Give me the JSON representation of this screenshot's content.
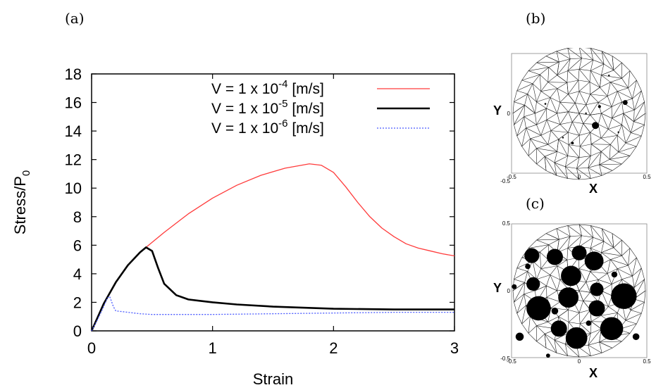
{
  "panels": {
    "a": "(a)",
    "b": "(b)",
    "c": "(c)"
  },
  "chart_data": [
    {
      "type": "line",
      "xlabel": "Strain",
      "ylabel": "Stress/P",
      "ylabel_sub": "0",
      "xlim": [
        0,
        3
      ],
      "ylim": [
        0,
        18
      ],
      "xticks": [
        0,
        1,
        2,
        3
      ],
      "yticks": [
        0,
        2,
        4,
        6,
        8,
        10,
        12,
        14,
        16,
        18
      ],
      "legend_position": "top-right",
      "series": [
        {
          "name": "V = 1 x 10^-4 [m/s]",
          "label_main": "V = 1 x 10",
          "label_exp": "-4",
          "label_unit": " [m/s]",
          "color": "#ff3b3b",
          "style": "solid",
          "x": [
            0,
            0.1,
            0.2,
            0.3,
            0.4,
            0.5,
            0.6,
            0.8,
            1.0,
            1.2,
            1.4,
            1.6,
            1.8,
            1.9,
            2.0,
            2.1,
            2.2,
            2.3,
            2.4,
            2.5,
            2.6,
            2.7,
            2.8,
            2.9,
            3.0
          ],
          "y": [
            0,
            1.9,
            3.4,
            4.6,
            5.5,
            6.2,
            6.9,
            8.2,
            9.3,
            10.2,
            10.9,
            11.4,
            11.7,
            11.6,
            11.1,
            10.1,
            9.0,
            8.0,
            7.2,
            6.6,
            6.1,
            5.8,
            5.6,
            5.4,
            5.25
          ]
        },
        {
          "name": "V = 1 x 10^-5 [m/s]",
          "label_main": "V = 1 x 10",
          "label_exp": "-5",
          "label_unit": " [m/s]",
          "color": "#000000",
          "style": "solid-thick",
          "x": [
            0,
            0.1,
            0.2,
            0.3,
            0.4,
            0.45,
            0.5,
            0.55,
            0.6,
            0.7,
            0.8,
            0.9,
            1.0,
            1.2,
            1.5,
            2.0,
            2.5,
            3.0
          ],
          "y": [
            0,
            1.9,
            3.4,
            4.6,
            5.5,
            5.85,
            5.6,
            4.4,
            3.3,
            2.5,
            2.2,
            2.1,
            2.0,
            1.85,
            1.7,
            1.55,
            1.5,
            1.5
          ]
        },
        {
          "name": "V = 1 x 10^-6 [m/s]",
          "label_main": "V = 1 x 10",
          "label_exp": "-6",
          "label_unit": " [m/s]",
          "color": "#4a5aff",
          "style": "dotted",
          "x": [
            0,
            0.05,
            0.1,
            0.13,
            0.15,
            0.18,
            0.2,
            0.3,
            0.4,
            0.5,
            1.0,
            1.5,
            2.0,
            2.5,
            3.0
          ],
          "y": [
            0,
            0.8,
            1.7,
            2.3,
            2.4,
            1.7,
            1.4,
            1.3,
            1.2,
            1.15,
            1.15,
            1.2,
            1.25,
            1.3,
            1.3
          ]
        }
      ]
    },
    {
      "type": "scatter",
      "panel": "b",
      "xlabel": "X",
      "ylabel": "Y",
      "xticks": [
        "-0.5",
        "0",
        "0.5"
      ],
      "yticks": [
        "0.5",
        "0",
        "-0.5"
      ],
      "particles": [
        {
          "x": 0.12,
          "y": -0.09,
          "r": 0.026
        },
        {
          "x": 0.34,
          "y": 0.08,
          "r": 0.018
        },
        {
          "x": 0.15,
          "y": 0.05,
          "r": 0.011
        },
        {
          "x": -0.05,
          "y": -0.22,
          "r": 0.01
        },
        {
          "x": -0.25,
          "y": 0.07,
          "r": 0.007
        },
        {
          "x": 0.05,
          "y": 0.0,
          "r": 0.006
        },
        {
          "x": 0.29,
          "y": -0.14,
          "r": 0.006
        },
        {
          "x": -0.12,
          "y": -0.18,
          "r": 0.006
        },
        {
          "x": 0.22,
          "y": 0.28,
          "r": 0.005
        }
      ]
    },
    {
      "type": "scatter",
      "panel": "c",
      "xlabel": "X",
      "ylabel": "Y",
      "xticks": [
        "-0.5",
        "0",
        "0.5"
      ],
      "yticks": [
        "0.5",
        "0",
        "-0.5"
      ],
      "particles": [
        {
          "x": -0.35,
          "y": 0.26,
          "r": 0.055
        },
        {
          "x": -0.18,
          "y": 0.25,
          "r": 0.06
        },
        {
          "x": 0.0,
          "y": 0.28,
          "r": 0.055
        },
        {
          "x": 0.11,
          "y": 0.22,
          "r": 0.07
        },
        {
          "x": -0.06,
          "y": 0.11,
          "r": 0.075
        },
        {
          "x": -0.34,
          "y": 0.05,
          "r": 0.05
        },
        {
          "x": 0.33,
          "y": -0.04,
          "r": 0.095
        },
        {
          "x": 0.13,
          "y": 0.01,
          "r": 0.05
        },
        {
          "x": -0.3,
          "y": -0.13,
          "r": 0.09
        },
        {
          "x": -0.08,
          "y": -0.05,
          "r": 0.075
        },
        {
          "x": 0.13,
          "y": -0.13,
          "r": 0.06
        },
        {
          "x": 0.24,
          "y": -0.28,
          "r": 0.085
        },
        {
          "x": -0.15,
          "y": -0.28,
          "r": 0.06
        },
        {
          "x": -0.02,
          "y": -0.35,
          "r": 0.08
        },
        {
          "x": -0.44,
          "y": -0.34,
          "r": 0.03
        },
        {
          "x": 0.42,
          "y": -0.34,
          "r": 0.025
        },
        {
          "x": -0.18,
          "y": -0.15,
          "r": 0.025
        },
        {
          "x": -0.38,
          "y": 0.18,
          "r": 0.02
        },
        {
          "x": 0.26,
          "y": 0.12,
          "r": 0.022
        },
        {
          "x": -0.48,
          "y": 0.03,
          "r": 0.018
        },
        {
          "x": 0.07,
          "y": -0.24,
          "r": 0.02
        },
        {
          "x": -0.23,
          "y": -0.48,
          "r": 0.015
        }
      ]
    }
  ]
}
